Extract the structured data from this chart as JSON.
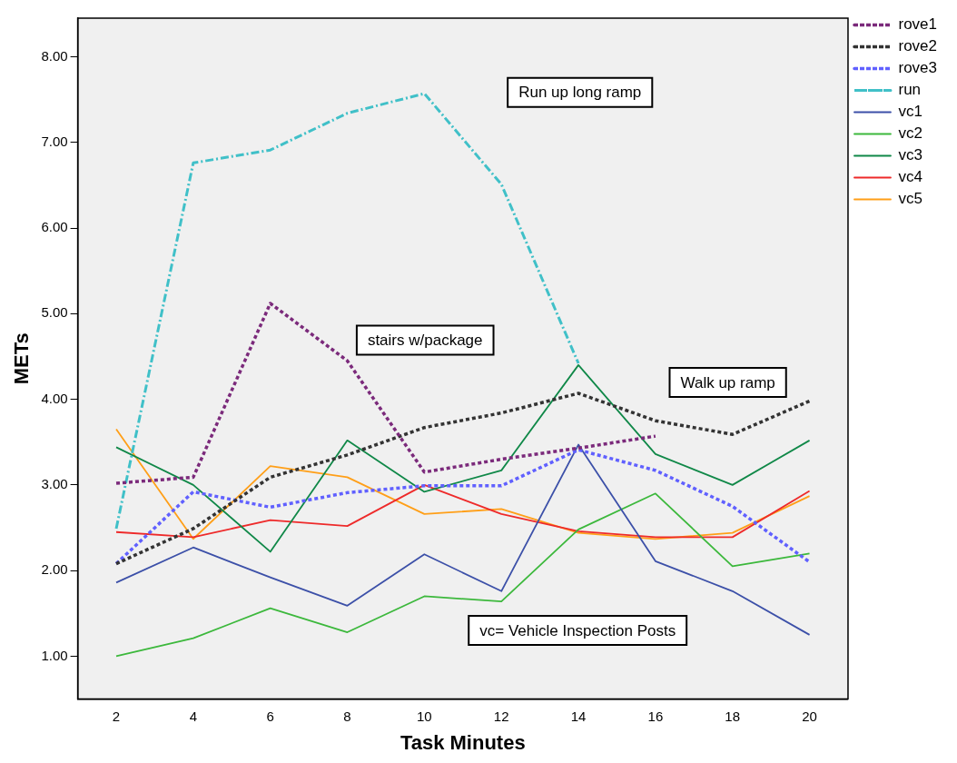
{
  "chart_data": {
    "type": "line",
    "xlabel": "Task Minutes",
    "ylabel": "METs",
    "x": [
      2,
      4,
      6,
      8,
      10,
      12,
      14,
      16,
      18,
      20
    ],
    "xlim": [
      1,
      21
    ],
    "xticks": [
      2,
      4,
      6,
      8,
      10,
      12,
      14,
      16,
      18,
      20
    ],
    "ylim": [
      0.5,
      8.45
    ],
    "yticks": [
      {
        "value": 1,
        "label": "1.00"
      },
      {
        "value": 2,
        "label": "2.00"
      },
      {
        "value": 3,
        "label": "3.00"
      },
      {
        "value": 4,
        "label": "4.00"
      },
      {
        "value": 5,
        "label": "5.00"
      },
      {
        "value": 6,
        "label": "6.00"
      },
      {
        "value": 7,
        "label": "7.00"
      },
      {
        "value": 8,
        "label": "8.00"
      }
    ],
    "grid": false,
    "legend": "top right",
    "marker": "none",
    "series": [
      {
        "name": "rove1",
        "color": "#7b2a7b",
        "line_style": "dotted",
        "values": [
          3.02,
          3.09,
          5.12,
          4.45,
          3.15,
          3.3,
          3.43,
          3.57,
          null,
          null
        ]
      },
      {
        "name": "rove2",
        "color": "#333333",
        "line_style": "dotted",
        "values": [
          2.08,
          2.49,
          3.09,
          3.35,
          3.67,
          3.84,
          4.07,
          3.75,
          3.59,
          3.98
        ]
      },
      {
        "name": "rove3",
        "color": "#6060ff",
        "line_style": "dotted",
        "values": [
          2.08,
          2.92,
          2.74,
          2.91,
          2.99,
          2.99,
          3.41,
          3.17,
          2.75,
          2.1
        ]
      },
      {
        "name": "run",
        "color": "#40c0c8",
        "line_style": "dashed",
        "values": [
          2.49,
          6.76,
          6.91,
          7.34,
          7.57,
          6.51,
          4.42,
          null,
          null,
          null
        ]
      },
      {
        "name": "vc1",
        "color": "#3c50a8",
        "line_style": "solid",
        "values": [
          1.86,
          2.27,
          1.92,
          1.59,
          2.19,
          1.76,
          3.47,
          2.11,
          1.76,
          1.25
        ]
      },
      {
        "name": "vc2",
        "color": "#3cb83c",
        "line_style": "solid",
        "values": [
          1.0,
          1.21,
          1.56,
          1.28,
          1.7,
          1.64,
          2.48,
          2.9,
          2.05,
          2.2
        ]
      },
      {
        "name": "vc3",
        "color": "#108848",
        "line_style": "solid",
        "values": [
          3.44,
          3.0,
          2.22,
          3.52,
          2.92,
          3.17,
          4.4,
          3.36,
          3.0,
          3.52
        ]
      },
      {
        "name": "vc4",
        "color": "#ee2a2a",
        "line_style": "solid",
        "values": [
          2.45,
          2.39,
          2.59,
          2.52,
          3.0,
          2.66,
          2.46,
          2.39,
          2.39,
          2.93
        ]
      },
      {
        "name": "vc5",
        "color": "#ff9f18",
        "line_style": "solid",
        "values": [
          3.65,
          2.37,
          3.22,
          3.09,
          2.66,
          2.72,
          2.44,
          2.37,
          2.44,
          2.87
        ]
      }
    ],
    "annotations": [
      "Run up long ramp",
      "stairs w/package",
      "Walk up ramp",
      "vc= Vehicle Inspection Posts"
    ]
  }
}
